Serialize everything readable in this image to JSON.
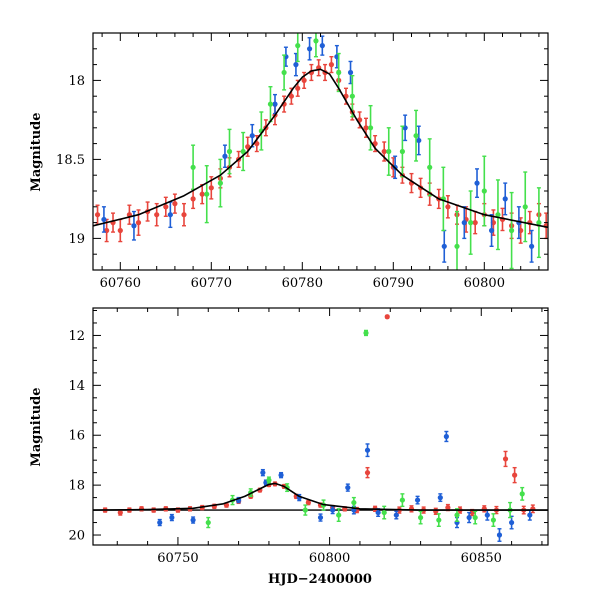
{
  "chart_data": [
    {
      "type": "scatter",
      "title": "",
      "xlabel": "",
      "ylabel": "Magnitude",
      "xlim": [
        60757,
        60807
      ],
      "ylim": [
        19.2,
        17.7
      ],
      "y_inverted": true,
      "x_ticks": [
        60760,
        60770,
        60780,
        60790,
        60800
      ],
      "y_ticks": [
        18,
        18.5,
        19
      ],
      "grid": false,
      "legend": "none",
      "model_curve": {
        "color": "#000000",
        "x": [
          60757,
          60762,
          60767,
          60771,
          60774,
          60777,
          60779,
          60780,
          60781,
          60782,
          60783,
          60784,
          60786,
          60788,
          60791,
          60795,
          60800,
          60807
        ],
        "y": [
          18.92,
          18.85,
          18.73,
          18.6,
          18.45,
          18.22,
          18.05,
          17.98,
          17.94,
          17.93,
          17.96,
          18.05,
          18.25,
          18.43,
          18.6,
          18.75,
          18.85,
          18.93
        ]
      },
      "series": [
        {
          "color": "#e8453c",
          "x": [
            60757.5,
            60758.5,
            60759.2,
            60760,
            60761,
            60762,
            60763,
            60764,
            60765,
            60766,
            60767,
            60768,
            60769,
            60770,
            60771,
            60772,
            60773,
            60774,
            60775,
            60776,
            60777,
            60778,
            60778.8,
            60779.5,
            60780.2,
            60781,
            60781.8,
            60782.5,
            60783.2,
            60784,
            60784.8,
            60785.5,
            60786.3,
            60787,
            60788,
            60789,
            60790,
            60791,
            60792,
            60793,
            60794,
            60795,
            60796,
            60797,
            60798,
            60799,
            60800,
            60801,
            60802,
            60803,
            60804,
            60805,
            60806,
            60806.8
          ],
          "y": [
            18.85,
            18.95,
            18.9,
            18.95,
            18.85,
            18.9,
            18.83,
            18.85,
            18.8,
            18.78,
            18.85,
            18.75,
            18.72,
            18.68,
            18.62,
            18.55,
            18.5,
            18.42,
            18.4,
            18.3,
            18.22,
            18.15,
            18.1,
            18.05,
            18.0,
            17.95,
            17.92,
            17.95,
            17.9,
            18.0,
            18.1,
            18.2,
            18.25,
            18.3,
            18.4,
            18.45,
            18.55,
            18.6,
            18.65,
            18.68,
            18.72,
            18.75,
            18.8,
            18.85,
            18.88,
            18.9,
            18.85,
            18.9,
            18.88,
            18.92,
            18.95,
            18.9,
            18.85,
            18.92
          ],
          "err": [
            0.06,
            0.07,
            0.06,
            0.07,
            0.06,
            0.08,
            0.06,
            0.07,
            0.06,
            0.06,
            0.07,
            0.06,
            0.06,
            0.07,
            0.06,
            0.06,
            0.05,
            0.06,
            0.05,
            0.05,
            0.06,
            0.05,
            0.05,
            0.05,
            0.05,
            0.05,
            0.05,
            0.05,
            0.05,
            0.06,
            0.05,
            0.05,
            0.05,
            0.06,
            0.05,
            0.06,
            0.06,
            0.05,
            0.06,
            0.06,
            0.07,
            0.06,
            0.07,
            0.06,
            0.08,
            0.07,
            0.07,
            0.08,
            0.07,
            0.08,
            0.08,
            0.07,
            0.07,
            0.08
          ]
        },
        {
          "color": "#1f5fd6",
          "x": [
            60758.2,
            60761.5,
            60765.5,
            60771.5,
            60774.5,
            60777,
            60778.2,
            60779.3,
            60780.8,
            60782.2,
            60783.8,
            60785.3,
            60790.2,
            60791.3,
            60792.8,
            60795.6,
            60797.8,
            60799.2,
            60800.8,
            60802.3,
            60803.8,
            60805.2
          ],
          "y": [
            18.88,
            18.92,
            18.85,
            18.48,
            18.35,
            18.15,
            17.85,
            17.9,
            17.8,
            17.78,
            17.85,
            17.95,
            18.55,
            18.3,
            18.38,
            19.05,
            18.9,
            18.65,
            18.95,
            18.75,
            18.9,
            19.05
          ],
          "err": [
            0.08,
            0.09,
            0.08,
            0.07,
            0.07,
            0.06,
            0.06,
            0.07,
            0.07,
            0.06,
            0.07,
            0.07,
            0.07,
            0.08,
            0.09,
            0.1,
            0.1,
            0.09,
            0.1,
            0.1,
            0.1,
            0.1
          ]
        },
        {
          "color": "#44e04c",
          "x": [
            60768,
            60769.5,
            60771,
            60772,
            60773.5,
            60775.5,
            60776.5,
            60778,
            60779.5,
            60781.5,
            60784,
            60785.5,
            60787.5,
            60789.5,
            60791,
            60792.5,
            60794,
            60795.5,
            60797,
            60798.5,
            60800,
            60801.5,
            60803,
            60804.5,
            60806
          ],
          "y": [
            18.55,
            18.72,
            18.65,
            18.45,
            18.45,
            18.32,
            18.15,
            17.95,
            17.78,
            17.75,
            17.95,
            18.1,
            18.3,
            18.45,
            18.45,
            18.35,
            18.55,
            18.75,
            19.05,
            18.9,
            18.7,
            18.85,
            18.95,
            18.8,
            18.9
          ],
          "err": [
            0.14,
            0.18,
            0.15,
            0.14,
            0.12,
            0.12,
            0.11,
            0.11,
            0.1,
            0.1,
            0.12,
            0.13,
            0.14,
            0.15,
            0.16,
            0.16,
            0.18,
            0.2,
            0.22,
            0.2,
            0.22,
            0.22,
            0.24,
            0.22,
            0.22
          ]
        }
      ]
    },
    {
      "type": "scatter",
      "title": "",
      "xlabel": "HJD−2400000",
      "ylabel": "Magnitude",
      "xlim": [
        60722,
        60872
      ],
      "ylim": [
        20.4,
        10.9
      ],
      "y_inverted": true,
      "x_ticks": [
        60750,
        60800,
        60850
      ],
      "y_ticks": [
        12,
        14,
        16,
        18,
        20
      ],
      "grid": false,
      "legend": "none",
      "reference_line": {
        "y": 19.0,
        "color": "#000000"
      },
      "model_curve": {
        "color": "#000000",
        "x": [
          60722,
          60740,
          60755,
          60765,
          60772,
          60777,
          60780,
          60782,
          60785,
          60790,
          60798,
          60810,
          60830,
          60850,
          60872
        ],
        "y": [
          19.0,
          18.98,
          18.93,
          18.75,
          18.45,
          18.15,
          17.97,
          17.93,
          18.05,
          18.45,
          18.78,
          18.95,
          19.0,
          19.0,
          19.0
        ]
      },
      "series": [
        {
          "color": "#e8453c",
          "x": [
            60726,
            60731,
            60734,
            60738,
            60742,
            60746,
            60750,
            60754,
            60758,
            60762,
            60766,
            60770,
            60774,
            60777,
            60780,
            60782,
            60785,
            60789,
            60793,
            60797,
            60801,
            60805,
            60809,
            60812.5,
            60815,
            60819,
            60823,
            60827,
            60831,
            60835,
            60839,
            60843,
            60847,
            60851,
            60855,
            60858,
            60861,
            60864,
            60867
          ],
          "y": [
            19.0,
            19.1,
            19.0,
            18.95,
            19.0,
            18.95,
            19.0,
            18.95,
            18.9,
            18.85,
            18.8,
            18.65,
            18.45,
            18.2,
            17.98,
            17.95,
            18.05,
            18.45,
            18.7,
            18.8,
            18.9,
            18.95,
            19.0,
            17.5,
            18.95,
            11.25,
            19.0,
            18.95,
            19.0,
            19.05,
            18.9,
            19.0,
            19.1,
            18.95,
            19.0,
            16.95,
            17.6,
            19.0,
            18.95
          ],
          "err": [
            0.08,
            0.1,
            0.08,
            0.08,
            0.08,
            0.08,
            0.08,
            0.08,
            0.08,
            0.08,
            0.08,
            0.08,
            0.07,
            0.07,
            0.07,
            0.07,
            0.07,
            0.08,
            0.08,
            0.08,
            0.08,
            0.08,
            0.1,
            0.2,
            0.1,
            0.05,
            0.12,
            0.12,
            0.12,
            0.12,
            0.12,
            0.12,
            0.12,
            0.12,
            0.14,
            0.3,
            0.3,
            0.15,
            0.15
          ]
        },
        {
          "color": "#1f5fd6",
          "x": [
            60744,
            60748,
            60755,
            60770,
            60778,
            60779,
            60784,
            60790,
            60797,
            60801,
            60806,
            60808,
            60812.5,
            60816,
            60822,
            60829,
            60836.5,
            60838.5,
            60842,
            60846,
            60852,
            60856,
            60860,
            60866
          ],
          "y": [
            19.5,
            19.3,
            19.4,
            18.6,
            17.5,
            17.9,
            17.6,
            18.5,
            19.3,
            19.0,
            18.1,
            19.0,
            16.6,
            19.1,
            19.2,
            18.6,
            18.5,
            16.05,
            19.5,
            19.3,
            19.2,
            20.0,
            19.5,
            19.2
          ],
          "err": [
            0.12,
            0.12,
            0.12,
            0.1,
            0.12,
            0.1,
            0.1,
            0.12,
            0.14,
            0.14,
            0.14,
            0.15,
            0.25,
            0.15,
            0.15,
            0.15,
            0.15,
            0.2,
            0.2,
            0.2,
            0.2,
            0.25,
            0.25,
            0.2
          ]
        },
        {
          "color": "#44e04c",
          "x": [
            60760,
            60768,
            60774,
            60780,
            60786,
            60792,
            60798,
            60803,
            60808,
            60812,
            60818,
            60824,
            60830,
            60836,
            60842,
            60848,
            60854,
            60859.5,
            60863.5
          ],
          "y": [
            19.5,
            18.6,
            18.3,
            17.8,
            18.1,
            19.0,
            18.8,
            19.2,
            18.7,
            11.9,
            19.1,
            18.6,
            19.3,
            19.4,
            19.2,
            19.3,
            19.4,
            19.0,
            18.35
          ],
          "err": [
            0.2,
            0.18,
            0.15,
            0.12,
            0.15,
            0.2,
            0.2,
            0.25,
            0.2,
            0.1,
            0.25,
            0.25,
            0.25,
            0.25,
            0.25,
            0.25,
            0.25,
            0.3,
            0.25
          ]
        }
      ]
    }
  ]
}
